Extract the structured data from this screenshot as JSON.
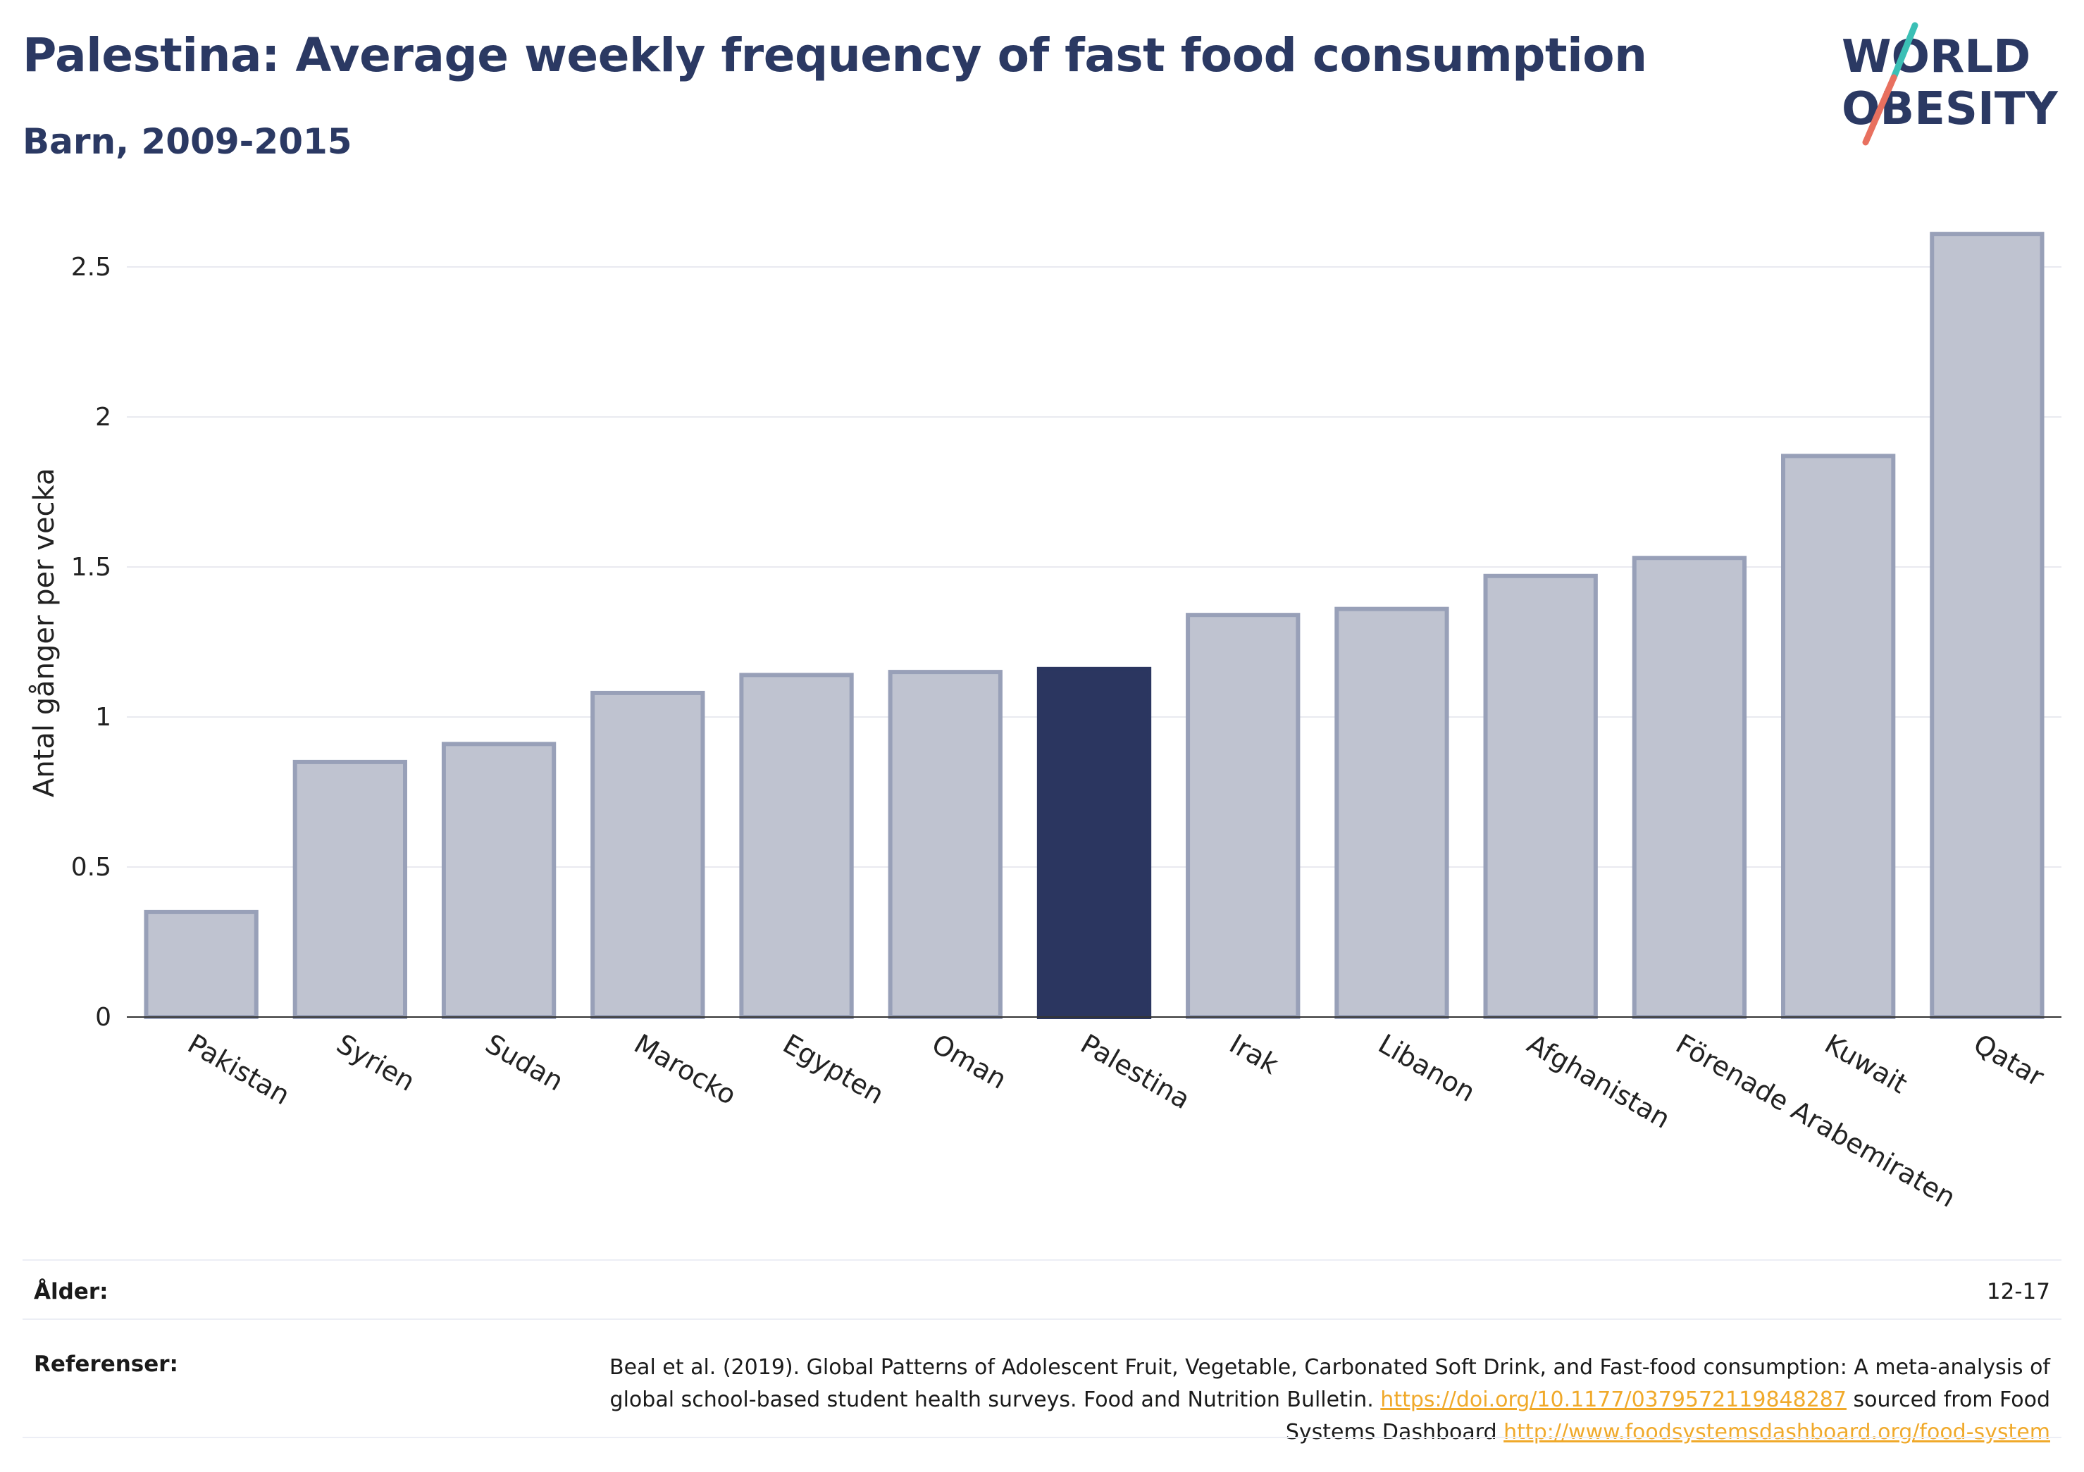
{
  "header": {
    "title": "Palestina: Average weekly frequency of fast food consumption",
    "subtitle": "Barn, 2009-2015"
  },
  "logo": {
    "line1": "WORLD",
    "line2": "OBESITY",
    "accent_teal": "#3bbfb5",
    "accent_red": "#e8705f"
  },
  "colors": {
    "bar": "#bfc3d0",
    "bar_border": "#98a0b8",
    "highlight": "#2b3660",
    "grid": "#e9eaf0",
    "axis": "#333333"
  },
  "chart_data": {
    "type": "bar",
    "categories": [
      "Pakistan",
      "Syrien",
      "Sudan",
      "Marocko",
      "Egypten",
      "Oman",
      "Palestina",
      "Irak",
      "Libanon",
      "Afghanistan",
      "Förenade Arabemiraten",
      "Kuwait",
      "Qatar"
    ],
    "values": [
      0.35,
      0.85,
      0.91,
      1.08,
      1.14,
      1.15,
      1.16,
      1.34,
      1.36,
      1.47,
      1.53,
      1.87,
      2.61
    ],
    "highlight": "Palestina",
    "ylabel": "Antal gånger per vecka",
    "xlabel": "",
    "ylim": [
      0,
      2.75
    ],
    "yticks": [
      0,
      0.5,
      1,
      1.5,
      2,
      2.5
    ],
    "ytick_labels": [
      "0",
      "0.5",
      "1",
      "1.5",
      "2",
      "2.5"
    ],
    "grid": true
  },
  "footer": {
    "age_label": "Ålder:",
    "age_value": "12-17",
    "ref_label": "Referenser:",
    "ref_text_1": "Beal et al. (2019). Global Patterns of Adolescent Fruit, Vegetable, Carbonated Soft Drink, and Fast-food consumption: A meta-analysis of global school-based student health surveys. Food and Nutrition Bulletin. ",
    "ref_link_1": "https://doi.org/10.1177/0379572119848287",
    "ref_text_2": " sourced from Food Systems Dashboard ",
    "ref_link_2": "http://www.foodsystemsdashboard.org/food-system"
  }
}
